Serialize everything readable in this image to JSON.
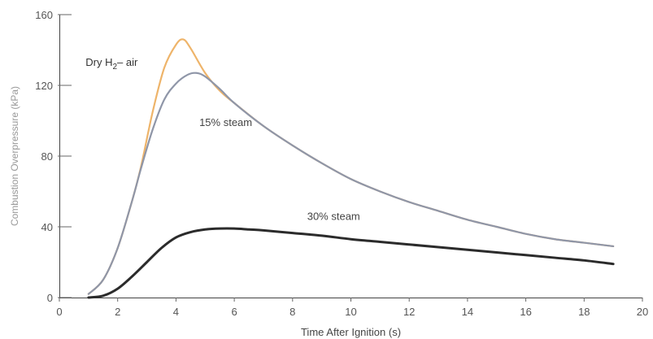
{
  "chart_data": {
    "type": "line",
    "title": "",
    "xlabel": "Time After Ignition (s)",
    "ylabel": "Combustion Overpressure (kPa)",
    "xlim": [
      0,
      20
    ],
    "ylim": [
      0,
      160
    ],
    "xticks": [
      0,
      2,
      4,
      6,
      8,
      10,
      12,
      14,
      16,
      18,
      20
    ],
    "yticks": [
      0,
      40,
      80,
      120,
      160
    ],
    "grid": false,
    "legend": "none",
    "series": [
      {
        "name": "Dry H2– air",
        "label_main": "Dry H",
        "label_sub": "2",
        "label_tail": "– air",
        "color": "#eeb46a",
        "x": [
          1.0,
          1.5,
          2.0,
          2.5,
          2.8,
          3.2,
          3.6,
          4.0,
          4.25,
          4.5,
          5.0,
          5.5,
          6.0,
          7.0,
          8.0,
          9.0,
          10.0,
          11.0,
          12.0,
          13.0,
          14.0,
          15.0,
          16.0,
          17.0,
          18.0,
          19.0
        ],
        "y": [
          2,
          10,
          28,
          55,
          74,
          105,
          130,
          143,
          146,
          141,
          127,
          117,
          110,
          97,
          86,
          76,
          67,
          60,
          54,
          49,
          44,
          40,
          36,
          33,
          31,
          29
        ]
      },
      {
        "name": "15% steam",
        "color": "#8f96a8",
        "x": [
          1.0,
          1.5,
          2.0,
          2.5,
          2.8,
          3.2,
          3.6,
          4.0,
          4.4,
          4.7,
          5.0,
          5.5,
          6.0,
          7.0,
          8.0,
          9.0,
          10.0,
          11.0,
          12.0,
          13.0,
          14.0,
          15.0,
          16.0,
          17.0,
          18.0,
          19.0
        ],
        "y": [
          2,
          10,
          28,
          55,
          73,
          95,
          112,
          121,
          126,
          127,
          125,
          118,
          110,
          97,
          86,
          76,
          67,
          60,
          54,
          49,
          44,
          40,
          36,
          33,
          31,
          29
        ]
      },
      {
        "name": "30% steam",
        "color": "#2b2b2b",
        "x": [
          1.0,
          1.5,
          2.0,
          2.5,
          3.0,
          3.5,
          4.0,
          4.5,
          5.0,
          5.5,
          6.0,
          6.5,
          7.0,
          8.0,
          9.0,
          10.0,
          11.0,
          12.0,
          13.0,
          14.0,
          15.0,
          16.0,
          17.0,
          18.0,
          19.0
        ],
        "y": [
          0,
          1,
          5,
          12,
          20,
          28,
          34,
          37,
          38.5,
          39,
          39,
          38.5,
          38,
          36.5,
          35,
          33,
          31.5,
          30,
          28.5,
          27,
          25.5,
          24,
          22.5,
          21,
          19
        ]
      }
    ],
    "annotations": [
      {
        "series": 1,
        "text": "15% steam",
        "x": 4.8,
        "y": 97
      },
      {
        "series": 2,
        "text": "30% steam",
        "x": 8.5,
        "y": 44
      }
    ]
  }
}
